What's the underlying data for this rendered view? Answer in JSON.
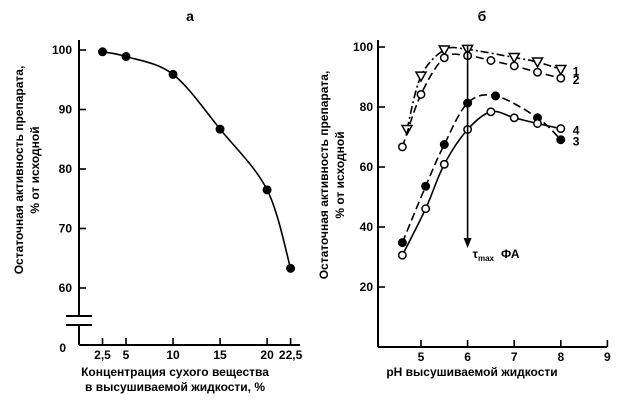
{
  "chart_data": [
    {
      "panel_label": "а",
      "type": "scatter",
      "xlabel_lines": [
        "Концентрация сухого вещества",
        "в высушиваемой жидкости, %"
      ],
      "ylabel_lines": [
        "Остаточная активность препарата,",
        "% от исходной"
      ],
      "xlim": [
        0,
        23.5
      ],
      "ylim": [
        55,
        101
      ],
      "axis_break": true,
      "x_ticks": [
        {
          "value": 2.5,
          "label": "2,5"
        },
        {
          "value": 5,
          "label": "5"
        },
        {
          "value": 10,
          "label": "10"
        },
        {
          "value": 15,
          "label": "15"
        },
        {
          "value": 20,
          "label": "20"
        },
        {
          "value": 22.5,
          "label": "22,5"
        }
      ],
      "y_ticks": [
        {
          "value": 60,
          "label": "60"
        },
        {
          "value": 70,
          "label": "70"
        },
        {
          "value": 80,
          "label": "80"
        },
        {
          "value": 90,
          "label": "90"
        },
        {
          "value": 100,
          "label": "100"
        }
      ],
      "y_zero_label": "0",
      "series": [
        {
          "marker": "filled-circle",
          "line": "solid",
          "x": [
            2.5,
            5,
            10,
            15,
            20,
            22.5
          ],
          "y": [
            99.7,
            98.9,
            95.9,
            86.7,
            76.5,
            63.3
          ]
        }
      ]
    },
    {
      "panel_label": "б",
      "type": "line",
      "xlabel": "pH высушиваемой жидкости",
      "ylabel_lines": [
        "Остаточная активность препарата,",
        "% от исходной"
      ],
      "xlim": [
        4.1,
        9
      ],
      "ylim": [
        0,
        100
      ],
      "x_ticks": [
        {
          "value": 5,
          "label": "5"
        },
        {
          "value": 6,
          "label": "6"
        },
        {
          "value": 7,
          "label": "7"
        },
        {
          "value": 8,
          "label": "8"
        },
        {
          "value": 9,
          "label": "9"
        }
      ],
      "y_ticks": [
        {
          "value": 20,
          "label": "20"
        },
        {
          "value": 40,
          "label": "40"
        },
        {
          "value": 60,
          "label": "60"
        },
        {
          "value": 80,
          "label": "80"
        },
        {
          "value": 100,
          "label": "100"
        }
      ],
      "annotation": {
        "x": 6,
        "tau": "τ",
        "sub": "max",
        "text": "ФА"
      },
      "series": [
        {
          "label": "1",
          "marker": "open-triangle",
          "line": "dashdot",
          "x": [
            4.7,
            5.0,
            5.5,
            6.0,
            7.0,
            7.5,
            8.0
          ],
          "y": [
            72.5,
            90.3,
            99.0,
            99.2,
            96.5,
            95.0,
            92.5
          ]
        },
        {
          "label": "2",
          "marker": "open-circle",
          "line": "dashed",
          "x": [
            4.6,
            5.0,
            5.5,
            6.0,
            6.5,
            7.0,
            7.5,
            8.0
          ],
          "y": [
            66.7,
            84.2,
            96.4,
            97.1,
            95.5,
            93.7,
            91.6,
            89.6
          ]
        },
        {
          "label": "3",
          "marker": "filled-circle",
          "line": "dashed",
          "x": [
            4.6,
            5.1,
            5.5,
            6.0,
            6.6,
            7.5,
            8.0
          ],
          "y": [
            34.8,
            53.6,
            67.5,
            81.3,
            83.7,
            76.4,
            69.1
          ]
        },
        {
          "label": "4",
          "marker": "open-circle",
          "line": "solid",
          "x": [
            4.6,
            5.1,
            5.5,
            6.0,
            6.5,
            7.0,
            7.5,
            8.0
          ],
          "y": [
            30.6,
            46.1,
            60.9,
            72.5,
            78.4,
            76.4,
            74.5,
            72.8
          ]
        }
      ]
    }
  ]
}
